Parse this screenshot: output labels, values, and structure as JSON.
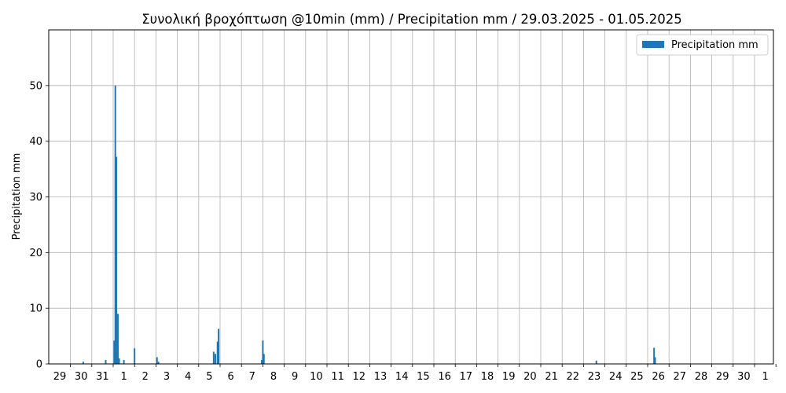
{
  "chart_data": {
    "type": "bar",
    "title": "Συνολική βροχόπτωση @10min (mm) / Precipitation mm / 29.03.2025 - 01.05.2025",
    "xlabel": "",
    "ylabel": "Precipitation mm",
    "ylim": [
      0,
      60
    ],
    "yticks": [
      0,
      10,
      20,
      30,
      40,
      50
    ],
    "grid": true,
    "legend": {
      "placement": "top-right",
      "entries": [
        "Precipitation mm"
      ]
    },
    "colors": {
      "bar": "#1f77b4",
      "grid": "#b0b0b0"
    },
    "x_days": [
      "29",
      "30",
      "31",
      "1",
      "2",
      "3",
      "4",
      "5",
      "6",
      "7",
      "8",
      "9",
      "10",
      "11",
      "12",
      "13",
      "14",
      "15",
      "16",
      "17",
      "18",
      "19",
      "20",
      "21",
      "22",
      "23",
      "24",
      "25",
      "26",
      "27",
      "28",
      "29",
      "30",
      "1"
    ],
    "series": [
      {
        "name": "Precipitation mm",
        "unit": "day offset from 29.03.2025 00:00",
        "points": [
          {
            "x": 0.6,
            "y": 0.4
          },
          {
            "x": 1.65,
            "y": 0.7
          },
          {
            "x": 2.05,
            "y": 4.2
          },
          {
            "x": 2.1,
            "y": 50.0
          },
          {
            "x": 2.15,
            "y": 37.2
          },
          {
            "x": 2.22,
            "y": 9.0
          },
          {
            "x": 2.28,
            "y": 1.0
          },
          {
            "x": 2.5,
            "y": 0.7
          },
          {
            "x": 3.0,
            "y": 2.8
          },
          {
            "x": 4.05,
            "y": 1.2
          },
          {
            "x": 4.12,
            "y": 0.4
          },
          {
            "x": 6.7,
            "y": 2.2
          },
          {
            "x": 6.78,
            "y": 1.8
          },
          {
            "x": 6.88,
            "y": 4.0
          },
          {
            "x": 6.93,
            "y": 6.3
          },
          {
            "x": 8.95,
            "y": 0.7
          },
          {
            "x": 9.0,
            "y": 4.2
          },
          {
            "x": 9.05,
            "y": 1.8
          },
          {
            "x": 24.6,
            "y": 0.6
          },
          {
            "x": 27.3,
            "y": 2.9
          },
          {
            "x": 27.35,
            "y": 1.2
          }
        ]
      }
    ]
  }
}
